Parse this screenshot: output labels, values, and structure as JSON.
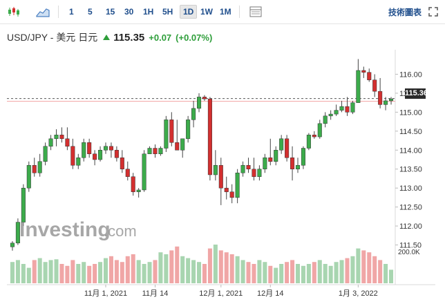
{
  "toolbar": {
    "chart_type_icon": "candlestick-icon",
    "area_icon": "area-chart-icon",
    "timeframes": [
      "1",
      "5",
      "15",
      "30",
      "1H",
      "5H",
      "1D",
      "1W",
      "1M"
    ],
    "active_timeframe": "1D",
    "table_icon": "table-icon",
    "tech_chart_link": "技術圖表",
    "expand_icon": "expand-icon"
  },
  "quote": {
    "symbol": "USD/JPY - 美元 日元",
    "price": "115.35",
    "change": "+0.07",
    "change_pct": "(+0.07%)",
    "direction": "up"
  },
  "price_tag": "115.36",
  "watermark": {
    "brand": "Investing",
    "suffix": ".com"
  },
  "colors": {
    "up": "#3cab4b",
    "down": "#d32f2f",
    "up_volume": "#a8d5b0",
    "down_volume": "#f0a6a6",
    "accent": "#1f4e8c"
  },
  "chart_data": {
    "type": "candlestick",
    "ylim": [
      111.0,
      116.5
    ],
    "yticks": [
      "111.50",
      "112.00",
      "112.50",
      "113.00",
      "113.50",
      "114.00",
      "114.50",
      "115.00",
      "115.50",
      "116.00"
    ],
    "xticks": [
      {
        "label": "11月 1, 2021",
        "index": 17
      },
      {
        "label": "11月 14",
        "index": 26
      },
      {
        "label": "12月 1, 2021",
        "index": 38
      },
      {
        "label": "12月 14",
        "index": 47
      },
      {
        "label": "1月 3, 2022",
        "index": 63
      }
    ],
    "volume_label": "200.0K",
    "last_price": 115.36,
    "candles": [
      [
        111.45,
        111.6,
        111.35,
        111.55
      ],
      [
        111.55,
        112.2,
        111.5,
        112.1
      ],
      [
        112.1,
        113.1,
        112.0,
        113.0
      ],
      [
        113.0,
        113.7,
        112.9,
        113.6
      ],
      [
        113.6,
        113.8,
        113.3,
        113.4
      ],
      [
        113.4,
        113.9,
        113.3,
        113.7
      ],
      [
        113.7,
        114.2,
        113.6,
        114.1
      ],
      [
        114.1,
        114.4,
        114.0,
        114.3
      ],
      [
        114.3,
        114.55,
        114.1,
        114.4
      ],
      [
        114.4,
        114.6,
        114.2,
        114.3
      ],
      [
        114.3,
        114.6,
        114.0,
        114.1
      ],
      [
        114.1,
        114.3,
        113.5,
        113.6
      ],
      [
        113.6,
        113.9,
        113.5,
        113.8
      ],
      [
        113.8,
        114.3,
        113.7,
        114.2
      ],
      [
        114.2,
        114.3,
        113.8,
        113.9
      ],
      [
        113.9,
        114.0,
        113.6,
        113.75
      ],
      [
        113.75,
        114.1,
        113.7,
        114.0
      ],
      [
        114.0,
        114.2,
        113.9,
        114.1
      ],
      [
        114.1,
        114.2,
        113.8,
        114.0
      ],
      [
        114.0,
        114.1,
        113.7,
        113.8
      ],
      [
        113.8,
        114.0,
        113.4,
        113.5
      ],
      [
        113.5,
        113.7,
        113.2,
        113.3
      ],
      [
        113.3,
        113.4,
        112.8,
        112.9
      ],
      [
        112.9,
        113.0,
        112.75,
        112.95
      ],
      [
        112.95,
        114.0,
        112.9,
        113.9
      ],
      [
        113.9,
        114.1,
        113.9,
        114.05
      ],
      [
        114.05,
        114.15,
        113.8,
        113.9
      ],
      [
        113.9,
        114.1,
        113.85,
        114.05
      ],
      [
        114.05,
        114.9,
        113.95,
        114.8
      ],
      [
        114.8,
        115.0,
        114.1,
        114.2
      ],
      [
        114.2,
        114.8,
        114.0,
        114.0
      ],
      [
        114.0,
        114.3,
        113.8,
        114.3
      ],
      [
        114.3,
        114.9,
        114.2,
        114.8
      ],
      [
        114.8,
        115.3,
        114.6,
        115.1
      ],
      [
        115.1,
        115.5,
        115.0,
        115.4
      ],
      [
        115.4,
        115.45,
        115.3,
        115.35
      ],
      [
        115.35,
        115.4,
        113.2,
        113.35
      ],
      [
        113.35,
        114.0,
        113.2,
        113.6
      ],
      [
        113.6,
        113.8,
        112.55,
        113.0
      ],
      [
        113.0,
        113.3,
        112.7,
        112.9
      ],
      [
        112.9,
        113.1,
        112.6,
        112.75
      ],
      [
        112.75,
        113.5,
        112.6,
        113.4
      ],
      [
        113.4,
        113.7,
        113.3,
        113.6
      ],
      [
        113.6,
        113.8,
        113.4,
        113.5
      ],
      [
        113.5,
        113.8,
        113.2,
        113.3
      ],
      [
        113.3,
        113.6,
        113.2,
        113.5
      ],
      [
        113.5,
        113.9,
        113.4,
        113.8
      ],
      [
        113.8,
        114.3,
        113.6,
        113.7
      ],
      [
        113.7,
        114.1,
        113.6,
        114.0
      ],
      [
        114.0,
        114.4,
        113.9,
        114.3
      ],
      [
        114.3,
        114.4,
        113.7,
        113.8
      ],
      [
        113.8,
        114.1,
        113.2,
        113.5
      ],
      [
        113.5,
        113.8,
        113.4,
        113.6
      ],
      [
        113.6,
        114.1,
        113.5,
        114.05
      ],
      [
        114.05,
        114.45,
        114.0,
        114.4
      ],
      [
        114.4,
        114.5,
        114.3,
        114.35
      ],
      [
        114.35,
        114.8,
        114.3,
        114.7
      ],
      [
        114.7,
        115.0,
        114.6,
        114.9
      ],
      [
        114.9,
        115.05,
        114.8,
        114.95
      ],
      [
        114.95,
        115.2,
        114.9,
        115.05
      ],
      [
        115.05,
        115.3,
        115.0,
        115.15
      ],
      [
        115.15,
        115.4,
        114.9,
        115.0
      ],
      [
        115.0,
        115.3,
        114.95,
        115.25
      ],
      [
        115.25,
        116.4,
        115.25,
        116.1
      ],
      [
        116.1,
        116.2,
        115.9,
        116.05
      ],
      [
        116.05,
        116.15,
        115.8,
        115.85
      ],
      [
        115.85,
        116.0,
        115.4,
        115.55
      ],
      [
        115.55,
        115.9,
        115.1,
        115.2
      ],
      [
        115.2,
        115.4,
        115.05,
        115.3
      ],
      [
        115.3,
        115.4,
        115.2,
        115.35
      ]
    ],
    "volume": [
      0.55,
      0.6,
      0.5,
      0.4,
      0.6,
      0.65,
      0.55,
      0.6,
      0.62,
      0.5,
      0.45,
      0.6,
      0.5,
      0.55,
      0.45,
      0.5,
      0.55,
      0.65,
      0.7,
      0.6,
      0.55,
      0.7,
      0.75,
      0.6,
      0.5,
      0.55,
      0.6,
      0.8,
      0.75,
      0.85,
      0.95,
      0.7,
      0.65,
      0.6,
      0.55,
      0.5,
      0.9,
      1.0,
      0.85,
      0.8,
      0.75,
      0.7,
      0.6,
      0.55,
      0.5,
      0.6,
      0.55,
      0.45,
      0.4,
      0.5,
      0.55,
      0.6,
      0.5,
      0.45,
      0.5,
      0.55,
      0.6,
      0.5,
      0.45,
      0.55,
      0.6,
      0.65,
      0.7,
      0.9,
      0.85,
      0.8,
      0.7,
      0.6,
      0.5,
      0.35
    ]
  }
}
